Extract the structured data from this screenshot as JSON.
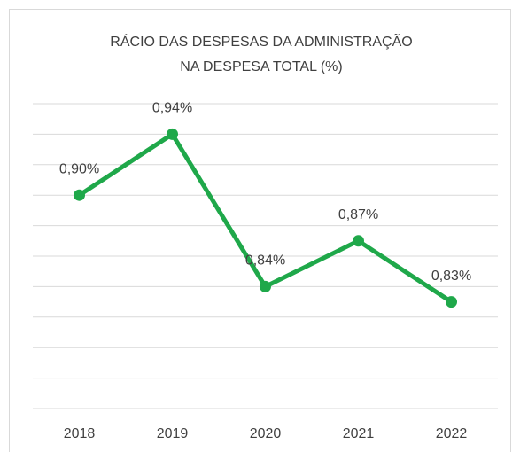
{
  "chart_data": {
    "type": "line",
    "title": [
      "RÁCIO DAS DESPESAS DA ADMINISTRAÇÃO",
      "NA DESPESA TOTAL (%)"
    ],
    "categories": [
      "2018",
      "2019",
      "2020",
      "2021",
      "2022"
    ],
    "series": [
      {
        "color": "#1fa84a",
        "values": [
          0.9,
          0.94,
          0.84,
          0.87,
          0.83
        ],
        "value_labels": [
          "0,90%",
          "0,94%",
          "0,84%",
          "0,87%",
          "0,83%"
        ]
      }
    ],
    "ylim": [
      0.76,
      0.96
    ],
    "yticks": [
      0.76,
      0.78,
      0.8,
      0.82,
      0.84,
      0.86,
      0.88,
      0.9,
      0.92,
      0.94,
      0.96
    ],
    "grid": true
  }
}
